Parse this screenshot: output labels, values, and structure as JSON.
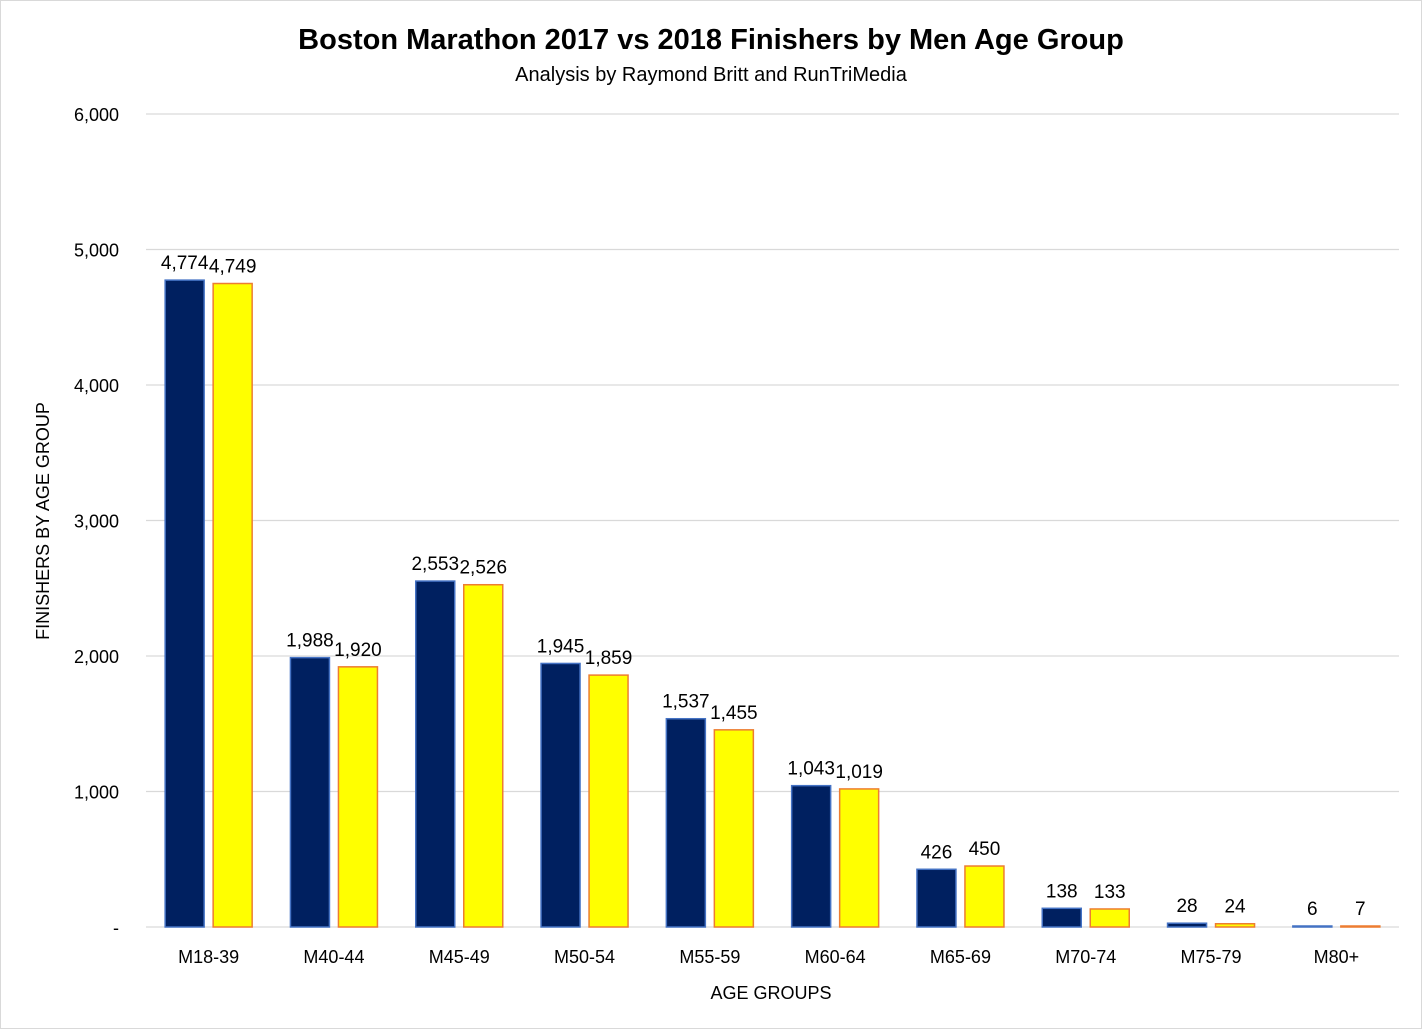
{
  "chart_data": {
    "type": "bar",
    "title": "Boston Marathon 2017 vs 2018 Finishers by Men Age Group",
    "subtitle": "Analysis by Raymond Britt and RunTriMedia",
    "xlabel": "AGE GROUPS",
    "ylabel": "FINISHERS BY AGE GROUP",
    "ylim": [
      0,
      6000
    ],
    "yticks": [
      {
        "value": 0,
        "label": "-"
      },
      {
        "value": 1000,
        "label": "1,000"
      },
      {
        "value": 2000,
        "label": "2,000"
      },
      {
        "value": 3000,
        "label": "3,000"
      },
      {
        "value": 4000,
        "label": "4,000"
      },
      {
        "value": 5000,
        "label": "5,000"
      },
      {
        "value": 6000,
        "label": "6,000"
      }
    ],
    "grid": true,
    "legend": "none",
    "categories": [
      "M18-39",
      "M40-44",
      "M45-49",
      "M50-54",
      "M55-59",
      "M60-64",
      "M65-69",
      "M70-74",
      "M75-79",
      "M80+"
    ],
    "series": [
      {
        "color": "#002060",
        "edge_color": "#4472c4",
        "values": [
          4774,
          1988,
          2553,
          1945,
          1537,
          1043,
          426,
          138,
          28,
          6
        ],
        "labels": [
          "4,774",
          "1,988",
          "2,553",
          "1,945",
          "1,537",
          "1,043",
          "426",
          "138",
          "28",
          "6"
        ]
      },
      {
        "color": "#ffff00",
        "edge_color": "#ed7d31",
        "values": [
          4749,
          1920,
          2526,
          1859,
          1455,
          1019,
          450,
          133,
          24,
          7
        ],
        "labels": [
          "4,749",
          "1,920",
          "2,526",
          "1,859",
          "1,455",
          "1,019",
          "450",
          "133",
          "24",
          "7"
        ]
      }
    ]
  }
}
